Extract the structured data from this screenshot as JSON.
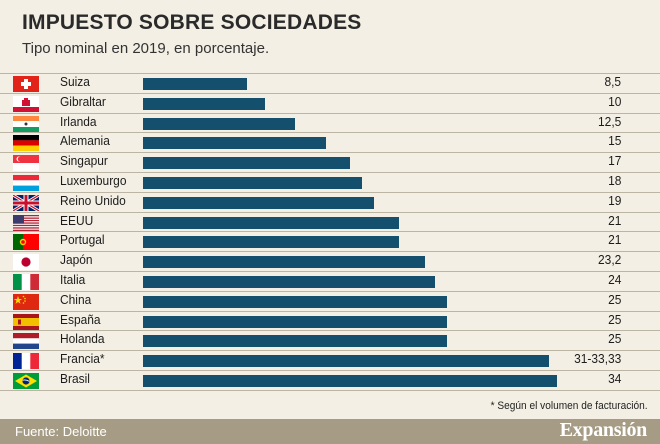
{
  "header": {
    "title": "IMPUESTO SOBRE SOCIEDADES",
    "subtitle": "Tipo nominal en 2019, en porcentaje."
  },
  "footer": {
    "note": "* Según el volumen de facturación.",
    "source": "Fuente: Deloitte",
    "brand": "Expansión"
  },
  "colors": {
    "bar": "#14506d",
    "background": "#f3efe4",
    "footer": "#a69c86"
  },
  "chart_data": {
    "type": "bar",
    "orientation": "horizontal",
    "title": "IMPUESTO SOBRE SOCIEDADES",
    "subtitle": "Tipo nominal en 2019, en porcentaje.",
    "xlim": [
      0,
      34
    ],
    "categories": [
      "Suiza",
      "Gibraltar",
      "Irlanda",
      "Alemania",
      "Singapur",
      "Luxemburgo",
      "Reino Unido",
      "EEUU",
      "Portugal",
      "Japón",
      "Italia",
      "China",
      "España",
      "Holanda",
      "Francia*",
      "Brasil"
    ],
    "values": [
      8.5,
      10,
      12.5,
      15,
      17,
      18,
      19,
      21,
      21,
      23.2,
      24,
      25,
      25,
      25,
      33.33,
      34
    ],
    "labels": [
      "8,5",
      "10",
      "12,5",
      "15",
      "17",
      "18",
      "19",
      "21",
      "21",
      "23,2",
      "24",
      "25",
      "25",
      "25",
      "31-33,33",
      "34"
    ],
    "flags": [
      "swiss-flag",
      "gibraltar-flag",
      "ireland-flag",
      "germany-flag",
      "singapore-flag",
      "luxembourg-flag",
      "uk-flag",
      "usa-flag",
      "portugal-flag",
      "japan-flag",
      "italy-flag",
      "china-flag",
      "spain-flag",
      "netherlands-flag",
      "france-flag",
      "brazil-flag"
    ]
  }
}
